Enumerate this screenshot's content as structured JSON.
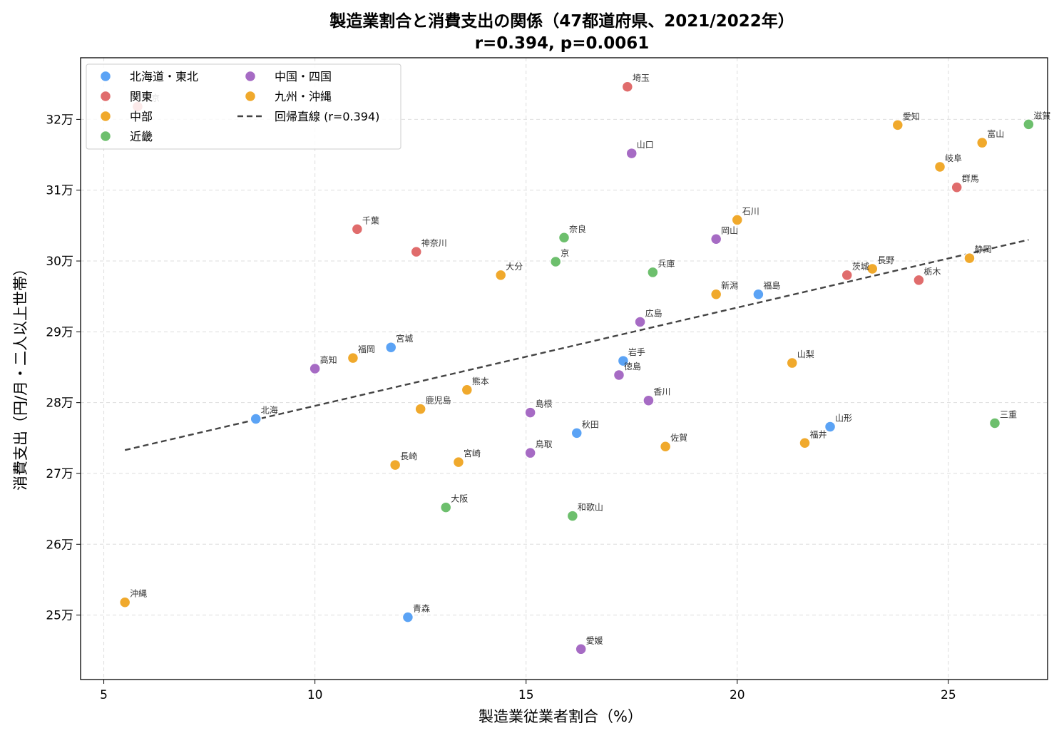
{
  "chart_data": {
    "type": "scatter",
    "title": "製造業割合と消費支出の関係（47都道府県、2021/2022年）",
    "subtitle": "r=0.394, p=0.0061",
    "xlabel": "製造業従業者割合（%）",
    "ylabel": "消費支出（円/月・二人以上世帯）",
    "xlim": [
      4.45,
      27.35
    ],
    "ylim": [
      240900,
      328700
    ],
    "xticks": [
      {
        "value": 5,
        "label": "5"
      },
      {
        "value": 10,
        "label": "10"
      },
      {
        "value": 15,
        "label": "15"
      },
      {
        "value": 20,
        "label": "20"
      },
      {
        "value": 25,
        "label": "25"
      }
    ],
    "yticks": [
      {
        "value": 250000,
        "label": "25万"
      },
      {
        "value": 260000,
        "label": "26万"
      },
      {
        "value": 270000,
        "label": "27万"
      },
      {
        "value": 280000,
        "label": "28万"
      },
      {
        "value": 290000,
        "label": "29万"
      },
      {
        "value": 300000,
        "label": "30万"
      },
      {
        "value": 310000,
        "label": "31万"
      },
      {
        "value": 320000,
        "label": "32万"
      }
    ],
    "grid": true,
    "legend_position": "top-left",
    "regions": [
      {
        "name": "北海道・東北",
        "color": "#5ba3f5"
      },
      {
        "name": "関東",
        "color": "#e06c6c"
      },
      {
        "name": "中部",
        "color": "#f0a92c"
      },
      {
        "name": "近畿",
        "color": "#6dbf6d"
      },
      {
        "name": "中国・四国",
        "color": "#a66bc4"
      },
      {
        "name": "九州・沖縄",
        "color": "#f0a92c"
      }
    ],
    "regression": {
      "label": "回帰直線 (r=0.394)",
      "color": "#444444",
      "x": [
        5.5,
        26.9
      ],
      "y": [
        273300,
        303000
      ]
    },
    "points": [
      {
        "label": "北海",
        "region": 0,
        "x": 8.6,
        "y": 277700
      },
      {
        "label": "青森",
        "region": 0,
        "x": 12.2,
        "y": 249700
      },
      {
        "label": "岩手",
        "region": 0,
        "x": 17.3,
        "y": 285900
      },
      {
        "label": "宮城",
        "region": 0,
        "x": 11.8,
        "y": 287800
      },
      {
        "label": "秋田",
        "region": 0,
        "x": 16.2,
        "y": 275700
      },
      {
        "label": "山形",
        "region": 0,
        "x": 22.2,
        "y": 276600
      },
      {
        "label": "福島",
        "region": 0,
        "x": 20.5,
        "y": 295300
      },
      {
        "label": "茨城",
        "region": 1,
        "x": 22.6,
        "y": 298000
      },
      {
        "label": "栃木",
        "region": 1,
        "x": 24.3,
        "y": 297300
      },
      {
        "label": "群馬",
        "region": 1,
        "x": 25.2,
        "y": 310400
      },
      {
        "label": "埼玉",
        "region": 1,
        "x": 17.4,
        "y": 324600
      },
      {
        "label": "千葉",
        "region": 1,
        "x": 11.0,
        "y": 304500
      },
      {
        "label": "東京",
        "region": 1,
        "x": 5.8,
        "y": 321800
      },
      {
        "label": "神奈川",
        "region": 1,
        "x": 12.4,
        "y": 301300
      },
      {
        "label": "新潟",
        "region": 2,
        "x": 19.5,
        "y": 295300
      },
      {
        "label": "富山",
        "region": 2,
        "x": 25.8,
        "y": 316700
      },
      {
        "label": "石川",
        "region": 2,
        "x": 20.0,
        "y": 305800
      },
      {
        "label": "福井",
        "region": 2,
        "x": 21.6,
        "y": 274300
      },
      {
        "label": "山梨",
        "region": 2,
        "x": 21.3,
        "y": 285600
      },
      {
        "label": "長野",
        "region": 2,
        "x": 23.2,
        "y": 298900
      },
      {
        "label": "岐阜",
        "region": 2,
        "x": 24.8,
        "y": 313300
      },
      {
        "label": "静岡",
        "region": 2,
        "x": 25.5,
        "y": 300400
      },
      {
        "label": "愛知",
        "region": 2,
        "x": 23.8,
        "y": 319200
      },
      {
        "label": "三重",
        "region": 3,
        "x": 26.1,
        "y": 277100
      },
      {
        "label": "滋賀",
        "region": 3,
        "x": 26.9,
        "y": 319300
      },
      {
        "label": "京",
        "region": 3,
        "x": 15.7,
        "y": 299900
      },
      {
        "label": "大阪",
        "region": 3,
        "x": 13.1,
        "y": 265200
      },
      {
        "label": "兵庫",
        "region": 3,
        "x": 18.0,
        "y": 298400
      },
      {
        "label": "奈良",
        "region": 3,
        "x": 15.9,
        "y": 303300
      },
      {
        "label": "和歌山",
        "region": 3,
        "x": 16.1,
        "y": 264000
      },
      {
        "label": "鳥取",
        "region": 4,
        "x": 15.1,
        "y": 272900
      },
      {
        "label": "島根",
        "region": 4,
        "x": 15.1,
        "y": 278600
      },
      {
        "label": "岡山",
        "region": 4,
        "x": 19.5,
        "y": 303100
      },
      {
        "label": "広島",
        "region": 4,
        "x": 17.7,
        "y": 291400
      },
      {
        "label": "山口",
        "region": 4,
        "x": 17.5,
        "y": 315200
      },
      {
        "label": "徳島",
        "region": 4,
        "x": 17.2,
        "y": 283900
      },
      {
        "label": "香川",
        "region": 4,
        "x": 17.9,
        "y": 280300
      },
      {
        "label": "愛媛",
        "region": 4,
        "x": 16.3,
        "y": 245200
      },
      {
        "label": "高知",
        "region": 4,
        "x": 10.0,
        "y": 284800
      },
      {
        "label": "福岡",
        "region": 5,
        "x": 10.9,
        "y": 286300
      },
      {
        "label": "長崎",
        "region": 5,
        "x": 11.9,
        "y": 271200
      },
      {
        "label": "熊本",
        "region": 5,
        "x": 13.6,
        "y": 281800
      },
      {
        "label": "大分",
        "region": 5,
        "x": 14.4,
        "y": 298000
      },
      {
        "label": "宮崎",
        "region": 5,
        "x": 13.4,
        "y": 271600
      },
      {
        "label": "鹿児島",
        "region": 5,
        "x": 12.5,
        "y": 279100
      },
      {
        "label": "沖縄",
        "region": 5,
        "x": 5.5,
        "y": 251800
      },
      {
        "label": "佐賀",
        "region": 5,
        "x": 18.3,
        "y": 273800
      }
    ]
  }
}
